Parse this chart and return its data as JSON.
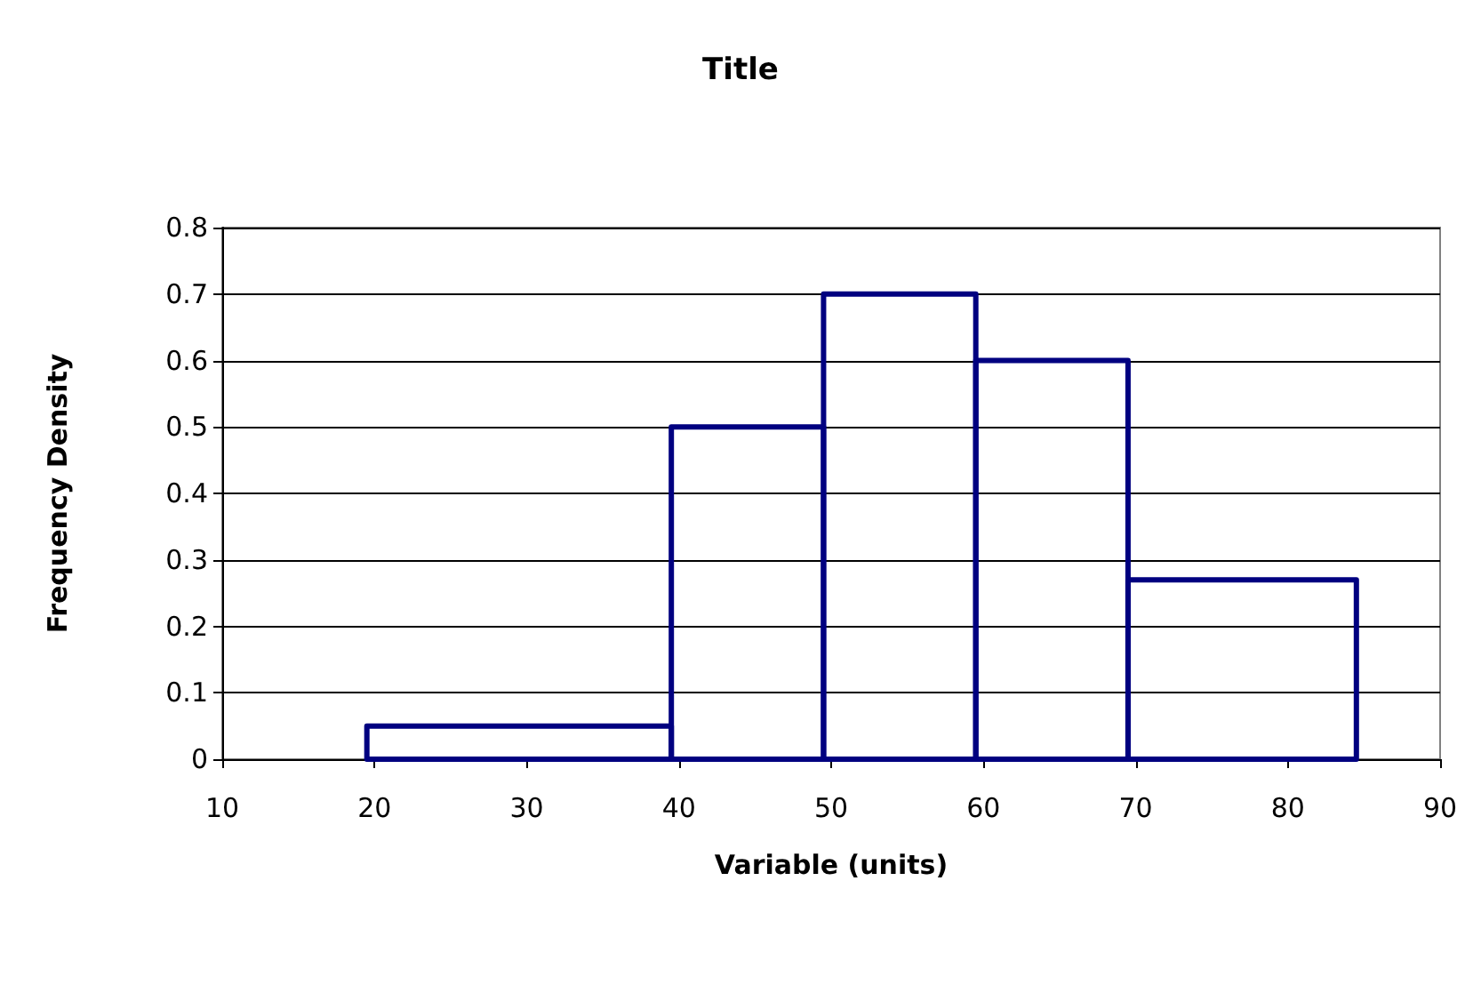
{
  "chart_data": {
    "type": "histogram",
    "title": "Title",
    "xlabel": "Variable (units)",
    "ylabel": "Frequency Density",
    "bins": [
      19.5,
      39.5,
      49.5,
      59.5,
      69.5,
      84.5
    ],
    "values": [
      0.05,
      0.5,
      0.7,
      0.6,
      0.27
    ],
    "color": "#000080",
    "xlim": [
      10,
      90
    ],
    "xticks": [
      10,
      20,
      30,
      40,
      50,
      60,
      70,
      80,
      90
    ],
    "ylim": [
      0,
      0.8
    ],
    "yticks": [
      0,
      0.1,
      0.2,
      0.3,
      0.4,
      0.5,
      0.6,
      0.7,
      0.8
    ],
    "grid": "y"
  }
}
